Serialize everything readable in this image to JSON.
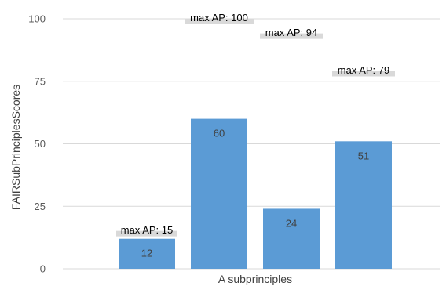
{
  "chart_data": {
    "type": "bar",
    "categories": [
      "",
      "",
      "",
      ""
    ],
    "values": [
      12,
      60,
      24,
      51
    ],
    "max_ap_labels": [
      "max AP: 15",
      "max AP: 100",
      "max AP: 94",
      "max AP: 79"
    ],
    "max_ap_values": [
      15,
      100,
      94,
      79
    ],
    "xlabel": "A subprinciples",
    "ylabel": "FAIRSubPrinciplesScores",
    "ylim": [
      0,
      100
    ],
    "yticks": [
      0,
      25,
      50,
      75,
      100
    ],
    "grid": true,
    "bar_color": "#5b9bd5",
    "grid_color": "#d9d9d9",
    "annotation_bg_color": "#d9d9d9"
  }
}
